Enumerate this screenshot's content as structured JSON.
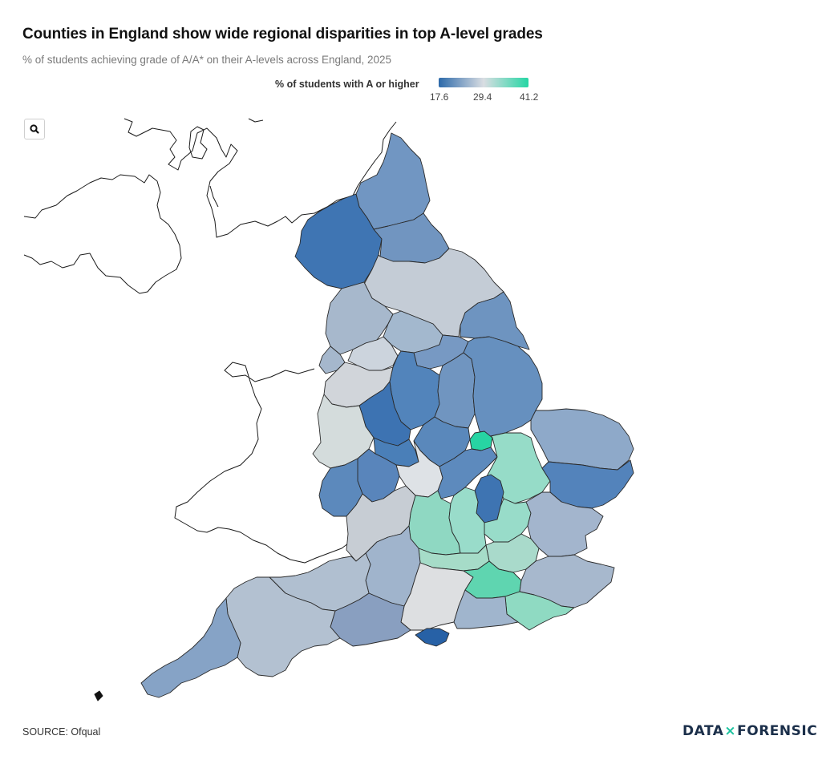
{
  "title": "Counties in England show wide regional disparities in top A-level grades",
  "subtitle": "% of students achieving grade of A/A* on their A-levels across England, 2025",
  "legend": {
    "title": "% of students with A or higher",
    "min": "17.6",
    "mid": "29.4",
    "max": "41.2",
    "color_low": "#2d6aaa",
    "color_mid": "#d9dde2",
    "color_high": "#25d6a4"
  },
  "source": "SOURCE: Ofqual",
  "logo": {
    "left": "DATA",
    "sep": "×",
    "right": "FORENSICS"
  },
  "icons": {
    "zoom": "search-icon"
  }
}
